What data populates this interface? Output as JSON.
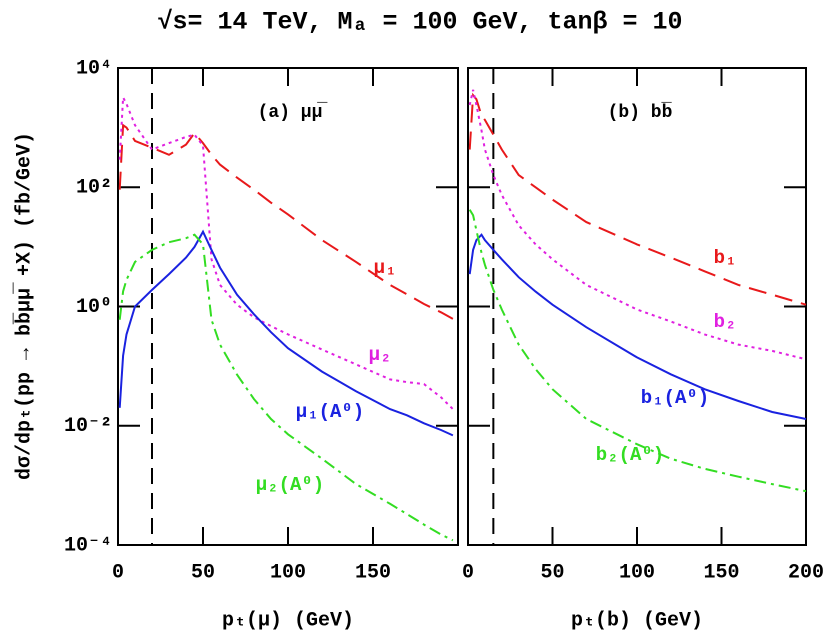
{
  "title": "√s= 14 TeV, Mₐ = 100 GeV, tanβ = 10",
  "ylabel": "dσ/dpₜ(pp → bb̅μμ̅ +X) (fb/GeV)",
  "chart_data": [
    {
      "type": "line",
      "annotation": "(a) μμ̅",
      "xlabel": "pₜ(μ) (GeV)",
      "log_y": true,
      "cut_x": 20,
      "xlim": [
        0,
        200
      ],
      "xticks": [
        0,
        50,
        100,
        150
      ],
      "ylim": [
        0.0001,
        10000
      ],
      "yticks": [
        {
          "value": 0.0001,
          "label": "10⁻⁴"
        },
        {
          "value": 0.01,
          "label": "10⁻²"
        },
        {
          "value": 1,
          "label": "10⁰"
        },
        {
          "value": 100,
          "label": "10²"
        },
        {
          "value": 10000,
          "label": "10⁴"
        }
      ],
      "x": [
        1,
        3,
        5,
        10,
        20,
        30,
        40,
        45,
        50,
        55,
        60,
        70,
        80,
        90,
        100,
        120,
        140,
        160,
        170,
        180,
        190,
        197
      ],
      "series": [
        {
          "name": "μ₁",
          "color": "#e8191b",
          "dash": "dashed",
          "values": [
            91,
            1100,
            1000,
            600,
            460,
            350,
            520,
            810,
            550,
            350,
            240,
            145,
            91,
            55,
            35,
            13,
            5.6,
            2.3,
            1.6,
            1.1,
            0.8,
            0.62
          ]
        },
        {
          "name": "μ₂",
          "color": "#e020e0",
          "dash": "dotted",
          "values": [
            290,
            3200,
            2500,
            1100,
            430,
            550,
            700,
            760,
            500,
            6.2,
            2.3,
            1.07,
            0.66,
            0.47,
            0.34,
            0.19,
            0.107,
            0.06,
            0.054,
            0.05,
            0.03,
            0.019
          ]
        },
        {
          "name": "μ₁(A⁰)",
          "color": "#1a22e0",
          "dash": "solid",
          "values": [
            0.02,
            0.15,
            0.34,
            1.0,
            1.9,
            3.5,
            6.6,
            10,
            18,
            8.9,
            4.5,
            1.58,
            0.74,
            0.37,
            0.2,
            0.081,
            0.038,
            0.019,
            0.015,
            0.011,
            0.0085,
            0.0069
          ]
        },
        {
          "name": "μ₂(A⁰)",
          "color": "#33dd22",
          "dash": "dashdot",
          "values": [
            0.6,
            1.8,
            2.8,
            5.6,
            8.9,
            12,
            14,
            16,
            11,
            0.6,
            0.23,
            0.072,
            0.028,
            0.013,
            0.0072,
            0.0028,
            0.00105,
            0.00049,
            0.00033,
            0.00022,
            0.00015,
            0.00012
          ]
        }
      ]
    },
    {
      "type": "line",
      "annotation": "(b) bb̅",
      "xlabel": "pₜ(b) (GeV)",
      "log_y": true,
      "cut_x": 15,
      "xlim": [
        0,
        200
      ],
      "xticks": [
        0,
        50,
        100,
        150,
        200
      ],
      "ylim": [
        0.0001,
        10000
      ],
      "x": [
        1,
        3,
        5,
        8,
        10,
        15,
        20,
        30,
        40,
        50,
        70,
        100,
        120,
        140,
        160,
        180,
        200
      ],
      "series": [
        {
          "name": "b₁",
          "color": "#e8191b",
          "dash": "dashed",
          "values": [
            430,
            3500,
            3000,
            1600,
            1350,
            760,
            430,
            160,
            100,
            62,
            26,
            11,
            6.6,
            3.9,
            2.3,
            1.58,
            1.07
          ]
        },
        {
          "name": "b₂",
          "color": "#e020e0",
          "dash": "dotted",
          "values": [
            2400,
            4300,
            2400,
            900,
            430,
            160,
            74,
            23,
            11,
            6.2,
            2.3,
            0.89,
            0.56,
            0.34,
            0.23,
            0.18,
            0.13
          ]
        },
        {
          "name": "b₁(A⁰)",
          "color": "#1a22e0",
          "dash": "solid",
          "values": [
            3.5,
            8.9,
            13,
            16,
            13,
            8.9,
            6.2,
            3.1,
            1.78,
            1.07,
            0.45,
            0.14,
            0.073,
            0.041,
            0.026,
            0.017,
            0.013
          ]
        },
        {
          "name": "b₂(A⁰)",
          "color": "#33dd22",
          "dash": "dashdot",
          "values": [
            42,
            34,
            19,
            8,
            5.0,
            1.9,
            0.89,
            0.23,
            0.089,
            0.041,
            0.013,
            0.0049,
            0.0028,
            0.0019,
            0.0014,
            0.00105,
            0.0008
          ]
        }
      ]
    }
  ]
}
